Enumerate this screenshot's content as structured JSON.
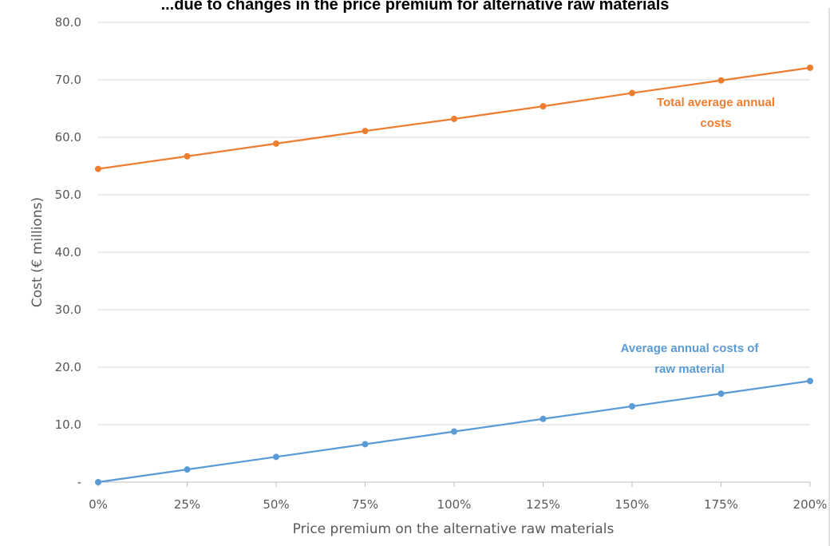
{
  "chart_data": {
    "type": "line",
    "title": "...due to changes in the price premium for alternative raw materials",
    "xlabel": "Price premium on the alternative raw materials",
    "ylabel": "Cost (€ millions)",
    "x": [
      "0%",
      "25%",
      "50%",
      "75%",
      "100%",
      "125%",
      "150%",
      "175%",
      "200%"
    ],
    "y_ticks": [
      {
        "value": 0,
        "label": "-"
      },
      {
        "value": 10,
        "label": "10.0"
      },
      {
        "value": 20,
        "label": "20.0"
      },
      {
        "value": 30,
        "label": "30.0"
      },
      {
        "value": 40,
        "label": "40.0"
      },
      {
        "value": 50,
        "label": "50.0"
      },
      {
        "value": 60,
        "label": "60.0"
      },
      {
        "value": 70,
        "label": "70.0"
      },
      {
        "value": 80,
        "label": "80.0"
      }
    ],
    "ylim": [
      0,
      80
    ],
    "grid": true,
    "series": [
      {
        "name": "Total average annual costs",
        "label_lines": [
          "Total average annual",
          "costs"
        ],
        "color": "#ED7D31",
        "values": [
          54.5,
          56.7,
          58.9,
          61.1,
          63.2,
          65.4,
          67.7,
          69.9,
          72.1
        ]
      },
      {
        "name": "Average annual costs of raw material",
        "label_lines": [
          "Average annual costs of",
          "raw material"
        ],
        "color": "#5B9BD5",
        "values": [
          0.0,
          2.2,
          4.4,
          6.6,
          8.8,
          11.0,
          13.2,
          15.4,
          17.6
        ]
      }
    ]
  }
}
